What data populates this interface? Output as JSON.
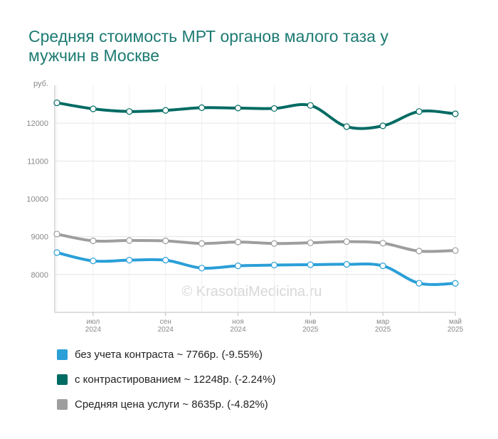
{
  "chart_data": {
    "type": "line",
    "title": "Средняя стоимость МРТ органов малого таза у мужчин в Москве",
    "y_label": "руб.",
    "watermark": "© KrasotaiMedicina.ru",
    "categories": [
      null,
      "июл 2024",
      null,
      "сен 2024",
      null,
      "ноя 2024",
      null,
      "янв 2025",
      null,
      "мар 2025",
      null,
      "май 2025"
    ],
    "ylim": [
      7000,
      13000
    ],
    "yticks": [
      8000,
      9000,
      10000,
      11000,
      12000
    ],
    "grid": true,
    "series": [
      {
        "name": "без учета контраста ~ 7766р. (-9.55%)",
        "color": "#2a9fd8",
        "values": [
          8580,
          8360,
          8380,
          8380,
          8170,
          8230,
          8250,
          8260,
          8270,
          8230,
          7770,
          7766
        ]
      },
      {
        "name": "с контрастированием ~ 12248р. (-2.24%)",
        "color": "#006b63",
        "values": [
          12540,
          12380,
          12310,
          12340,
          12410,
          12400,
          12390,
          12470,
          11910,
          11930,
          12310,
          12248
        ]
      },
      {
        "name": "Средняя цена услуги ~ 8635р. (-4.82%)",
        "color": "#9e9e9e",
        "values": [
          9070,
          8890,
          8900,
          8890,
          8820,
          8860,
          8820,
          8840,
          8870,
          8830,
          8620,
          8635
        ]
      }
    ]
  }
}
